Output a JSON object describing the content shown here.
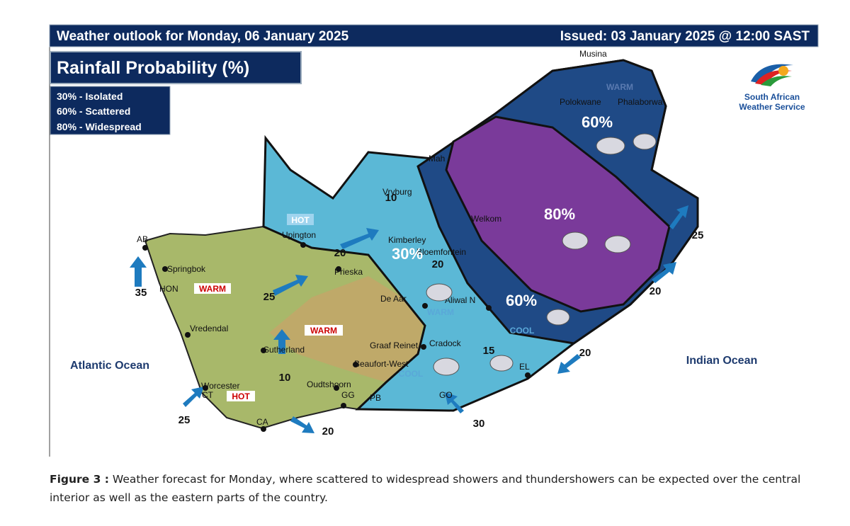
{
  "header": {
    "title": "Weather outlook for Monday, 06 January 2025",
    "issued": "Issued: 03 January 2025 @ 12:00 SAST"
  },
  "panel_title": "Rainfall Probability (%)",
  "legend": [
    "30% - Isolated",
    "60% - Scattered",
    "80% - Widespread"
  ],
  "logo": [
    "South African",
    "Weather Service"
  ],
  "probability_labels": [
    "60%",
    "80%",
    "60%",
    "30%"
  ],
  "places": [
    "Musina",
    "Polokwane",
    "Phalaborwa",
    "Mah",
    "Vryburg",
    "Upington",
    "Kimberley",
    "Bloemfontein",
    "Welkom",
    "Prieska",
    "De Aar",
    "Aliwal N",
    "Springbok",
    "Vredendal",
    "Sutherland",
    "Graaf Reinet",
    "Beaufort-West",
    "Cradock",
    "Oudtshoorn",
    "Worcester",
    "GG",
    "CT",
    "CA",
    "PB",
    "GO",
    "EL",
    "AB",
    "HON"
  ],
  "temperature_labels": [
    "HOT",
    "WARM",
    "WARM",
    "HOT",
    "WARM",
    "COOL",
    "COOL",
    "WARM"
  ],
  "wind_speeds": [
    "35",
    "25",
    "20",
    "10",
    "25",
    "20",
    "30",
    "20",
    "20",
    "25",
    "15",
    "10",
    "20"
  ],
  "oceans": [
    "Atlantic Ocean",
    "Indian Ocean"
  ],
  "caption": {
    "label": "Figure 3 :",
    "text": "Weather forecast for Monday, where scattered to widespread showers and thundershowers can be expected over the central interior as well as the eastern parts of the country."
  }
}
